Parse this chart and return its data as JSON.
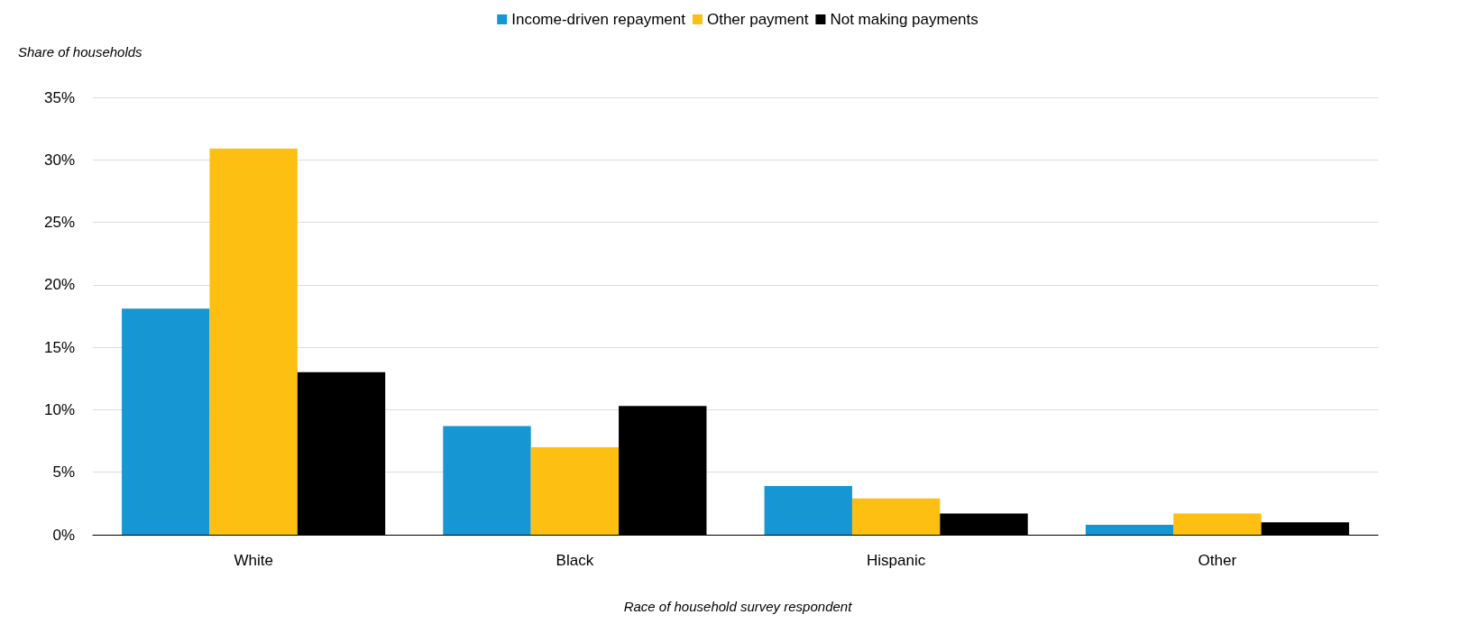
{
  "chart_data": {
    "type": "bar",
    "xlabel": "Race of household survey respondent",
    "ylabel": "Share of households",
    "categories": [
      "White",
      "Black",
      "Hispanic",
      "Other"
    ],
    "series": [
      {
        "name": "Income-driven repayment",
        "color": "#1696d2",
        "values": [
          18.1,
          8.7,
          3.9,
          0.8
        ]
      },
      {
        "name": "Other payment",
        "color": "#fdbf11",
        "values": [
          30.9,
          7.0,
          2.9,
          1.7
        ]
      },
      {
        "name": "Not making payments",
        "color": "#000000",
        "values": [
          13.0,
          10.3,
          1.7,
          1.0
        ]
      }
    ],
    "ylim": [
      0,
      35
    ],
    "yticks": [
      {
        "value": 0,
        "label": "0%"
      },
      {
        "value": 5,
        "label": "5%"
      },
      {
        "value": 10,
        "label": "10%"
      },
      {
        "value": 15,
        "label": "15%"
      },
      {
        "value": 20,
        "label": "20%"
      },
      {
        "value": 25,
        "label": "25%"
      },
      {
        "value": 30,
        "label": "30%"
      },
      {
        "value": 35,
        "label": "35%"
      }
    ],
    "grid": "y",
    "legend": "top"
  }
}
